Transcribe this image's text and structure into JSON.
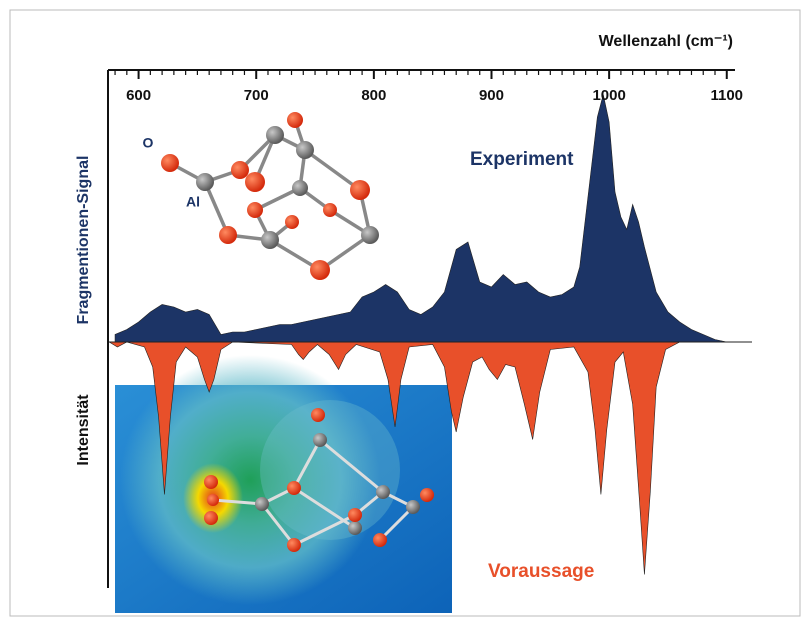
{
  "chart_data": {
    "type": "mirror-area",
    "x_label": "Wellenzahl (cm⁻¹)",
    "y_label_top": "Fragmentionen-Signal",
    "y_label_bottom": "Intensität",
    "xlim": [
      574,
      1107
    ],
    "ylim": [
      -100,
      110
    ],
    "xticks": [
      600,
      700,
      800,
      900,
      1000,
      1100
    ],
    "xminorticks": [
      580,
      590,
      610,
      620,
      630,
      640,
      650,
      660,
      670,
      680,
      690,
      710,
      720,
      730,
      740,
      750,
      760,
      770,
      780,
      790,
      810,
      820,
      830,
      840,
      850,
      860,
      870,
      880,
      890,
      910,
      920,
      930,
      940,
      950,
      960,
      970,
      980,
      990,
      1010,
      1020,
      1030,
      1040,
      1050,
      1060,
      1070,
      1080,
      1090,
      1100
    ],
    "annotations": [
      "O",
      "Al"
    ],
    "series": [
      {
        "name": "Experiment",
        "color": "#1c3466",
        "x": [
          580,
          590,
          600,
          610,
          620,
          630,
          640,
          650,
          660,
          670,
          680,
          690,
          700,
          710,
          720,
          730,
          740,
          750,
          760,
          770,
          780,
          790,
          800,
          810,
          820,
          830,
          840,
          850,
          860,
          870,
          880,
          890,
          900,
          910,
          920,
          930,
          940,
          950,
          960,
          970,
          975,
          980,
          990,
          995,
          1000,
          1005,
          1010,
          1015,
          1020,
          1025,
          1030,
          1040,
          1050,
          1060,
          1070,
          1080,
          1090,
          1100
        ],
        "values": [
          3,
          5,
          8,
          12,
          15,
          14,
          12,
          13,
          11,
          3,
          4,
          4,
          5,
          6,
          7,
          7,
          8,
          9,
          10,
          11,
          12,
          18,
          20,
          23,
          20,
          13,
          11,
          14,
          20,
          37,
          40,
          24,
          22,
          27,
          23,
          24,
          20,
          18,
          19,
          22,
          30,
          50,
          90,
          99,
          88,
          60,
          50,
          45,
          55,
          48,
          38,
          20,
          12,
          8,
          5,
          3,
          1,
          0
        ]
      },
      {
        "name": "Voraussage",
        "color": "#e8502a",
        "x": [
          575,
          582,
          590,
          605,
          612,
          617,
          622,
          627,
          632,
          640,
          650,
          656,
          660,
          664,
          670,
          680,
          730,
          736,
          740,
          745,
          752,
          762,
          770,
          776,
          785,
          805,
          812,
          818,
          823,
          830,
          850,
          860,
          866,
          870,
          876,
          884,
          892,
          898,
          905,
          912,
          920,
          928,
          935,
          941,
          950,
          970,
          982,
          988,
          993,
          998,
          1005,
          1012,
          1020,
          1026,
          1030,
          1035,
          1040,
          1048,
          1060
        ],
        "values": [
          0,
          -2,
          0,
          -2,
          -10,
          -30,
          -61,
          -30,
          -8,
          -2,
          -6,
          -15,
          -20,
          -15,
          -3,
          0,
          -1,
          -5,
          -7,
          -4,
          -1,
          -5,
          -11,
          -5,
          -1,
          -4,
          -15,
          -34,
          -15,
          -2,
          -1,
          -10,
          -28,
          -36,
          -22,
          -8,
          -6,
          -11,
          -15,
          -9,
          -10,
          -25,
          -39,
          -20,
          -3,
          -2,
          -12,
          -35,
          -61,
          -35,
          -8,
          -4,
          -25,
          -65,
          -93,
          -60,
          -18,
          -3,
          0
        ]
      }
    ]
  }
}
